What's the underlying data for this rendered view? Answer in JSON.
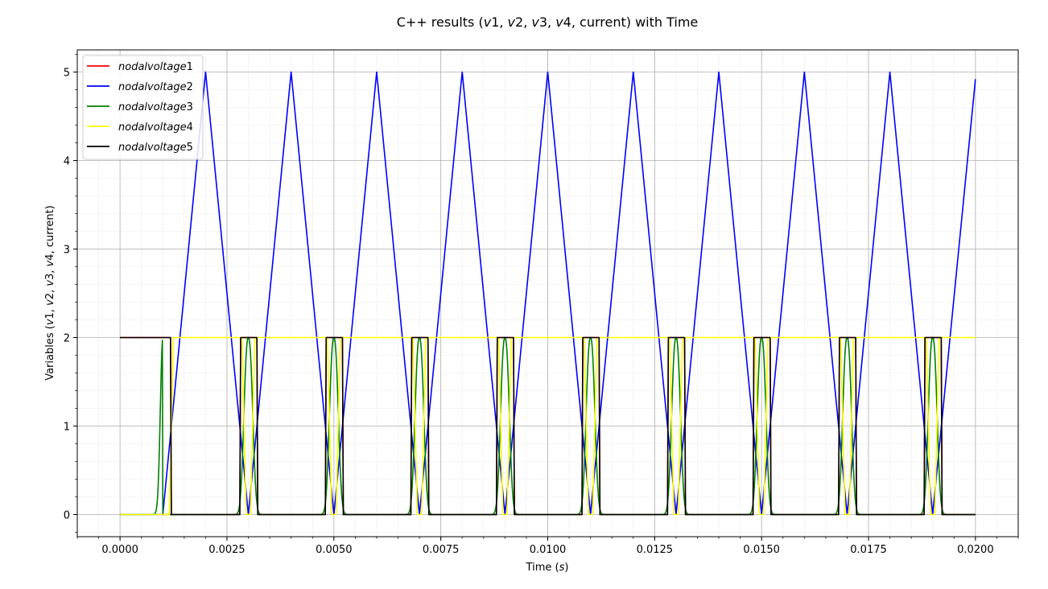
{
  "chart_data": {
    "type": "line",
    "title": "C++ results (v1, v2, v3, v4, current) with Time",
    "title_parts": [
      {
        "text": "C++ results (",
        "italic": false
      },
      {
        "text": "v",
        "italic": true
      },
      {
        "text": "1, ",
        "italic": false
      },
      {
        "text": "v",
        "italic": true
      },
      {
        "text": "2, ",
        "italic": false
      },
      {
        "text": "v",
        "italic": true
      },
      {
        "text": "3, ",
        "italic": false
      },
      {
        "text": "v",
        "italic": true
      },
      {
        "text": "4, current) with Time",
        "italic": false
      }
    ],
    "xlabel": "Time (s)",
    "xlabel_parts": [
      {
        "text": "Time (",
        "italic": false
      },
      {
        "text": "s",
        "italic": true
      },
      {
        "text": ")",
        "italic": false
      }
    ],
    "ylabel": "Variables (v1, v2, v3, v4, current)",
    "ylabel_parts": [
      {
        "text": "Variables (",
        "italic": false
      },
      {
        "text": "v",
        "italic": true
      },
      {
        "text": "1, ",
        "italic": false
      },
      {
        "text": "v",
        "italic": true
      },
      {
        "text": "2, ",
        "italic": false
      },
      {
        "text": "v",
        "italic": true
      },
      {
        "text": "3, ",
        "italic": false
      },
      {
        "text": "v",
        "italic": true
      },
      {
        "text": "4, current)",
        "italic": false
      }
    ],
    "xlim": [
      -0.001,
      0.021
    ],
    "ylim": [
      -0.25,
      5.25
    ],
    "x_ticks": [
      0.0,
      0.0025,
      0.005,
      0.0075,
      0.01,
      0.0125,
      0.015,
      0.0175,
      0.02
    ],
    "x_tick_labels": [
      "0.0000",
      "0.0025",
      "0.0050",
      "0.0075",
      "0.0100",
      "0.0125",
      "0.0150",
      "0.0175",
      "0.0200"
    ],
    "y_ticks": [
      0,
      1,
      2,
      3,
      4,
      5
    ],
    "y_tick_labels": [
      "0",
      "1",
      "2",
      "3",
      "4",
      "5"
    ],
    "grid": true,
    "minor_grid": true,
    "legend_position": "top-left",
    "series": [
      {
        "name": "nodalvoltage1",
        "name_parts": [
          {
            "text": "nodalvoltage",
            "italic": true
          },
          {
            "text": "1",
            "italic": false
          }
        ],
        "color": "#ff0000",
        "points": [
          [
            0.0,
            2.0
          ],
          [
            0.00118,
            2.0
          ],
          [
            0.0012,
            0.0
          ],
          [
            0.0028,
            0.0
          ],
          [
            0.00282,
            2.0
          ],
          [
            0.0032,
            2.0
          ],
          [
            0.00322,
            0.0
          ],
          [
            0.0048,
            0.0
          ],
          [
            0.00482,
            2.0
          ],
          [
            0.0052,
            2.0
          ],
          [
            0.00522,
            0.0
          ],
          [
            0.0068,
            0.0
          ],
          [
            0.00682,
            2.0
          ],
          [
            0.0072,
            2.0
          ],
          [
            0.00722,
            0.0
          ],
          [
            0.0088,
            0.0
          ],
          [
            0.00882,
            2.0
          ],
          [
            0.0092,
            2.0
          ],
          [
            0.00922,
            0.0
          ],
          [
            0.0108,
            0.0
          ],
          [
            0.01082,
            2.0
          ],
          [
            0.0112,
            2.0
          ],
          [
            0.01122,
            0.0
          ],
          [
            0.0128,
            0.0
          ],
          [
            0.01282,
            2.0
          ],
          [
            0.0132,
            2.0
          ],
          [
            0.01322,
            0.0
          ],
          [
            0.0148,
            0.0
          ],
          [
            0.01482,
            2.0
          ],
          [
            0.0152,
            2.0
          ],
          [
            0.01522,
            0.0
          ],
          [
            0.0168,
            0.0
          ],
          [
            0.01682,
            2.0
          ],
          [
            0.0172,
            2.0
          ],
          [
            0.01722,
            0.0
          ],
          [
            0.0188,
            0.0
          ],
          [
            0.01882,
            2.0
          ],
          [
            0.0192,
            2.0
          ],
          [
            0.01922,
            0.0
          ],
          [
            0.02,
            0.0
          ]
        ]
      },
      {
        "name": "nodalvoltage2",
        "name_parts": [
          {
            "text": "nodalvoltage",
            "italic": true
          },
          {
            "text": "2",
            "italic": false
          }
        ],
        "color": "#0000ff",
        "points": [
          [
            0.0,
            0.0
          ],
          [
            0.001,
            0.0
          ],
          [
            0.002,
            5.0
          ],
          [
            0.003,
            0.0
          ],
          [
            0.004,
            5.0
          ],
          [
            0.005,
            0.0
          ],
          [
            0.006,
            5.0
          ],
          [
            0.007,
            0.0
          ],
          [
            0.008,
            5.0
          ],
          [
            0.009,
            0.0
          ],
          [
            0.01,
            5.0
          ],
          [
            0.011,
            0.0
          ],
          [
            0.012,
            5.0
          ],
          [
            0.013,
            0.0
          ],
          [
            0.014,
            5.0
          ],
          [
            0.015,
            0.0
          ],
          [
            0.016,
            5.0
          ],
          [
            0.017,
            0.0
          ],
          [
            0.018,
            5.0
          ],
          [
            0.019,
            0.0
          ],
          [
            0.02,
            4.92
          ]
        ]
      },
      {
        "name": "nodalvoltage3",
        "name_parts": [
          {
            "text": "nodalvoltage",
            "italic": true
          },
          {
            "text": "3",
            "italic": false
          }
        ],
        "color": "#008000",
        "pulse": {
          "baseline": 2.0,
          "first_center": 0.001,
          "first_width": 0.00012,
          "centers": [
            0.003,
            0.005,
            0.007,
            0.009,
            0.011,
            0.013,
            0.015,
            0.017,
            0.019
          ],
          "width": 0.00016,
          "end": 0.02
        }
      },
      {
        "name": "nodalvoltage4",
        "name_parts": [
          {
            "text": "nodalvoltage",
            "italic": true
          },
          {
            "text": "4",
            "italic": false
          }
        ],
        "color": "#ffff00",
        "points": [
          [
            0.0,
            0.0
          ],
          [
            0.00115,
            0.0
          ],
          [
            0.00125,
            2.0
          ],
          [
            0.00285,
            2.0
          ],
          [
            0.00295,
            0.0
          ],
          [
            0.00305,
            0.0
          ],
          [
            0.00315,
            2.0
          ],
          [
            0.00485,
            2.0
          ],
          [
            0.00495,
            0.0
          ],
          [
            0.00505,
            0.0
          ],
          [
            0.00515,
            2.0
          ],
          [
            0.00685,
            2.0
          ],
          [
            0.00695,
            0.0
          ],
          [
            0.00705,
            0.0
          ],
          [
            0.00715,
            2.0
          ],
          [
            0.00885,
            2.0
          ],
          [
            0.00895,
            0.0
          ],
          [
            0.00905,
            0.0
          ],
          [
            0.00915,
            2.0
          ],
          [
            0.01085,
            2.0
          ],
          [
            0.01095,
            0.0
          ],
          [
            0.01105,
            0.0
          ],
          [
            0.01115,
            2.0
          ],
          [
            0.01285,
            2.0
          ],
          [
            0.01295,
            0.0
          ],
          [
            0.01305,
            0.0
          ],
          [
            0.01315,
            2.0
          ],
          [
            0.01485,
            2.0
          ],
          [
            0.01495,
            0.0
          ],
          [
            0.01505,
            0.0
          ],
          [
            0.01515,
            2.0
          ],
          [
            0.01685,
            2.0
          ],
          [
            0.01695,
            0.0
          ],
          [
            0.01705,
            0.0
          ],
          [
            0.01715,
            2.0
          ],
          [
            0.01885,
            2.0
          ],
          [
            0.01895,
            0.0
          ],
          [
            0.01905,
            0.0
          ],
          [
            0.01915,
            2.0
          ],
          [
            0.02,
            2.0
          ]
        ]
      },
      {
        "name": "nodalvoltage5",
        "name_parts": [
          {
            "text": "nodalvoltage",
            "italic": true
          },
          {
            "text": "5",
            "italic": false
          }
        ],
        "color": "#000000",
        "points": [
          [
            0.0,
            2.0
          ],
          [
            0.00118,
            2.0
          ],
          [
            0.0012,
            0.0
          ],
          [
            0.0028,
            0.0
          ],
          [
            0.00282,
            2.0
          ],
          [
            0.0032,
            2.0
          ],
          [
            0.00322,
            0.0
          ],
          [
            0.0048,
            0.0
          ],
          [
            0.00482,
            2.0
          ],
          [
            0.0052,
            2.0
          ],
          [
            0.00522,
            0.0
          ],
          [
            0.0068,
            0.0
          ],
          [
            0.00682,
            2.0
          ],
          [
            0.0072,
            2.0
          ],
          [
            0.00722,
            0.0
          ],
          [
            0.0088,
            0.0
          ],
          [
            0.00882,
            2.0
          ],
          [
            0.0092,
            2.0
          ],
          [
            0.00922,
            0.0
          ],
          [
            0.0108,
            0.0
          ],
          [
            0.01082,
            2.0
          ],
          [
            0.0112,
            2.0
          ],
          [
            0.01122,
            0.0
          ],
          [
            0.0128,
            0.0
          ],
          [
            0.01282,
            2.0
          ],
          [
            0.0132,
            2.0
          ],
          [
            0.01322,
            0.0
          ],
          [
            0.0148,
            0.0
          ],
          [
            0.01482,
            2.0
          ],
          [
            0.0152,
            2.0
          ],
          [
            0.01522,
            0.0
          ],
          [
            0.0168,
            0.0
          ],
          [
            0.01682,
            2.0
          ],
          [
            0.0172,
            2.0
          ],
          [
            0.01722,
            0.0
          ],
          [
            0.0188,
            0.0
          ],
          [
            0.01882,
            2.0
          ],
          [
            0.0192,
            2.0
          ],
          [
            0.01922,
            0.0
          ],
          [
            0.02,
            0.0
          ]
        ]
      }
    ]
  }
}
